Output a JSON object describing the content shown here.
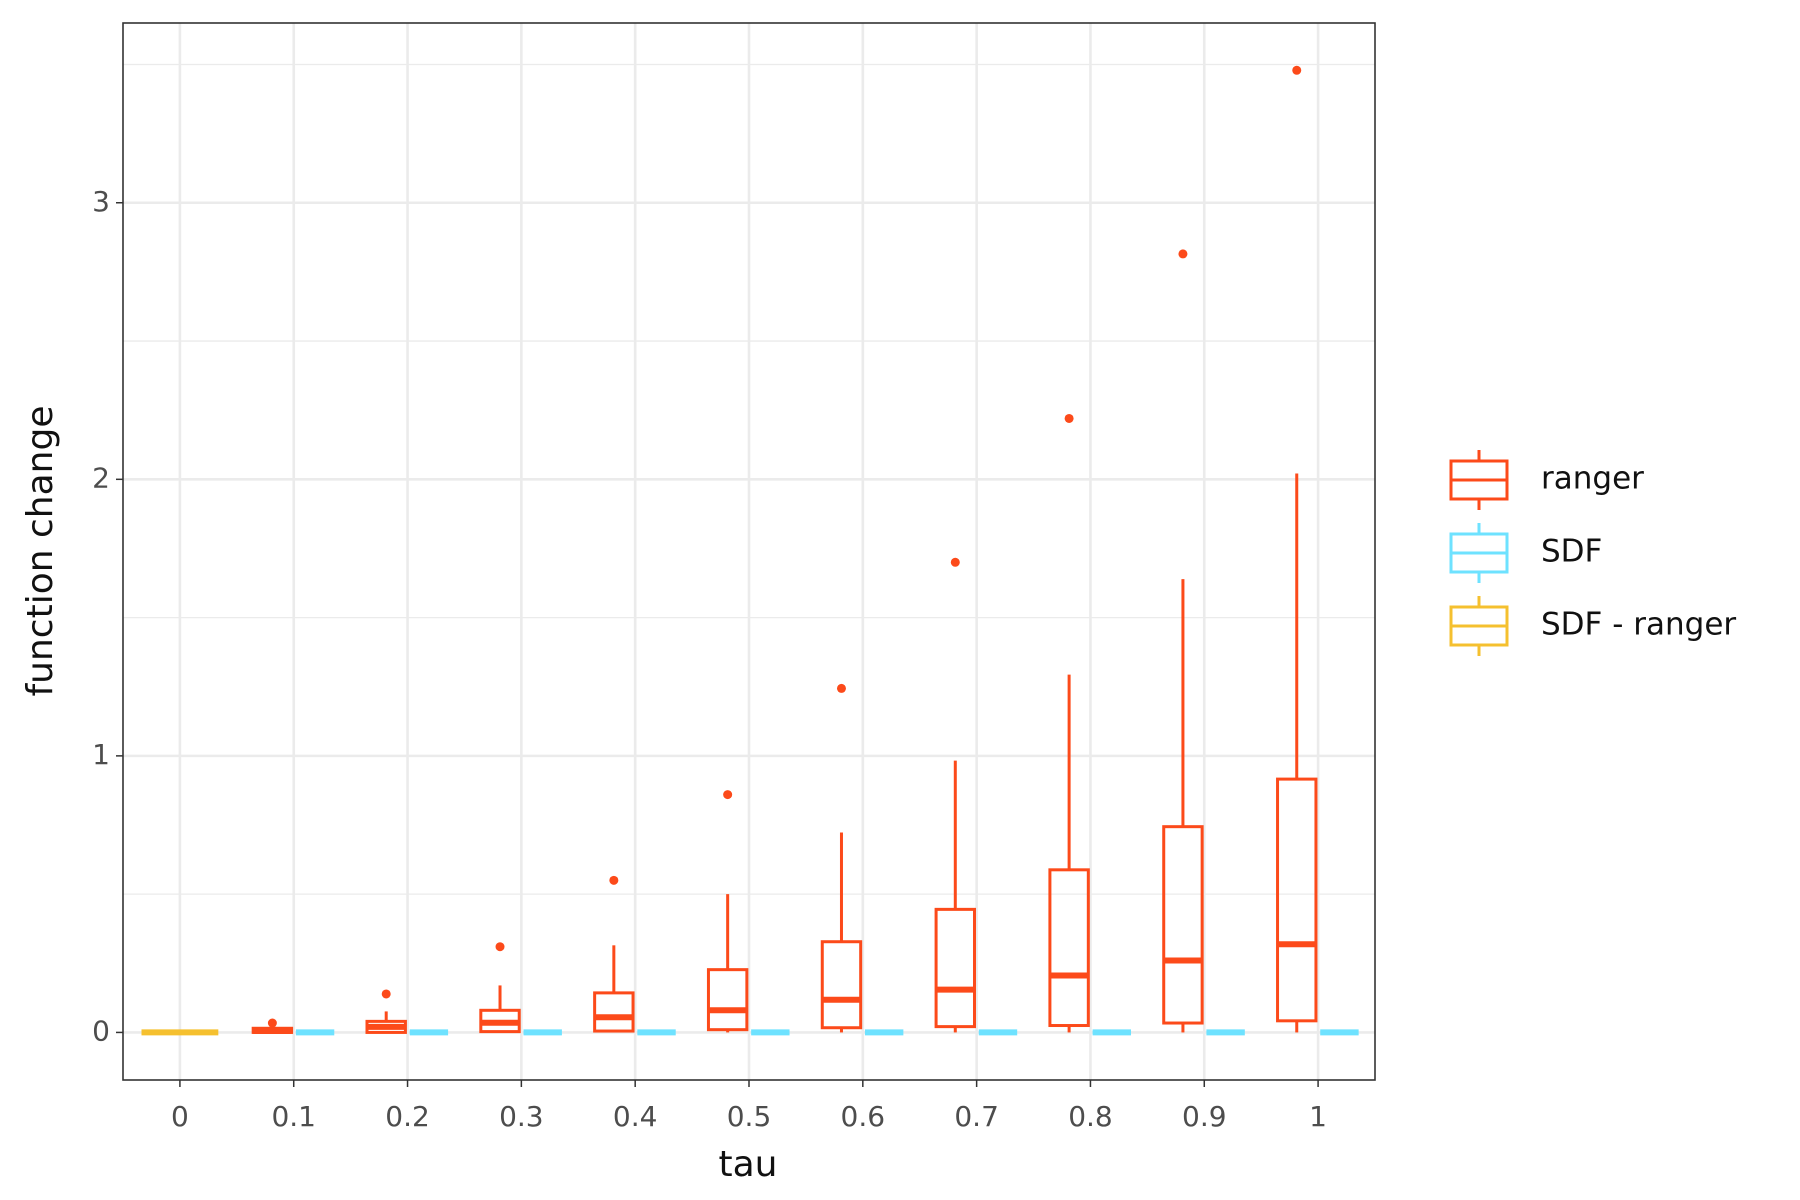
{
  "chart_data": {
    "type": "boxplot",
    "x_label": "tau",
    "y_label": "function change",
    "categories": [
      "0",
      "0.1",
      "0.2",
      "0.3",
      "0.4",
      "0.5",
      "0.6",
      "0.7",
      "0.8",
      "0.9",
      "1"
    ],
    "ylim": [
      -0.172,
      3.65
    ],
    "yticks": [
      0,
      1,
      2,
      3
    ],
    "yminor": [
      0.5,
      1.5,
      2.5,
      3.5
    ],
    "grid": true,
    "legend": "right",
    "series": [
      {
        "name": "ranger",
        "color": "#fc4a1a",
        "boxes": [
          null,
          {
            "min": 0,
            "q1": 0,
            "median": 0.005,
            "q3": 0.015,
            "max": 0.02,
            "outliers": [
              0.034
            ]
          },
          {
            "min": 0,
            "q1": 0,
            "median": 0.02,
            "q3": 0.04,
            "max": 0.076,
            "outliers": [
              0.139
            ]
          },
          {
            "min": 0,
            "q1": 0.003,
            "median": 0.035,
            "q3": 0.08,
            "max": 0.17,
            "outliers": [
              0.31
            ]
          },
          {
            "min": 0,
            "q1": 0.005,
            "median": 0.055,
            "q3": 0.143,
            "max": 0.315,
            "outliers": [
              0.55
            ]
          },
          {
            "min": 0,
            "q1": 0.01,
            "median": 0.08,
            "q3": 0.227,
            "max": 0.5,
            "outliers": [
              0.86
            ]
          },
          {
            "min": 0,
            "q1": 0.017,
            "median": 0.118,
            "q3": 0.328,
            "max": 0.723,
            "outliers": [
              1.244
            ]
          },
          {
            "min": 0,
            "q1": 0.021,
            "median": 0.155,
            "q3": 0.445,
            "max": 0.983,
            "outliers": [
              1.7
            ]
          },
          {
            "min": 0,
            "q1": 0.025,
            "median": 0.206,
            "q3": 0.588,
            "max": 1.294,
            "outliers": [
              2.22
            ]
          },
          {
            "min": 0,
            "q1": 0.034,
            "median": 0.26,
            "q3": 0.744,
            "max": 1.639,
            "outliers": [
              2.815
            ]
          },
          {
            "min": 0,
            "q1": 0.042,
            "median": 0.319,
            "q3": 0.916,
            "max": 2.021,
            "outliers": [
              3.479
            ]
          }
        ]
      },
      {
        "name": "SDF",
        "color": "#6ee2ff",
        "boxes": [
          null,
          {
            "min": 0,
            "q1": 0,
            "median": 0,
            "q3": 0,
            "max": 0,
            "outliers": []
          },
          {
            "min": 0,
            "q1": 0,
            "median": 0,
            "q3": 0,
            "max": 0,
            "outliers": []
          },
          {
            "min": 0,
            "q1": 0,
            "median": 0,
            "q3": 0,
            "max": 0,
            "outliers": []
          },
          {
            "min": 0,
            "q1": 0,
            "median": 0,
            "q3": 0,
            "max": 0,
            "outliers": []
          },
          {
            "min": 0,
            "q1": 0,
            "median": 0,
            "q3": 0,
            "max": 0,
            "outliers": []
          },
          {
            "min": 0,
            "q1": 0,
            "median": 0,
            "q3": 0,
            "max": 0,
            "outliers": []
          },
          {
            "min": 0,
            "q1": 0,
            "median": 0,
            "q3": 0,
            "max": 0,
            "outliers": []
          },
          {
            "min": 0,
            "q1": 0,
            "median": 0,
            "q3": 0,
            "max": 0,
            "outliers": []
          },
          {
            "min": 0,
            "q1": 0,
            "median": 0,
            "q3": 0,
            "max": 0,
            "outliers": []
          },
          {
            "min": 0,
            "q1": 0,
            "median": 0,
            "q3": 0,
            "max": 0,
            "outliers": []
          }
        ]
      },
      {
        "name": "SDF - ranger",
        "color": "#f5c02f",
        "boxes": [
          {
            "min": 0,
            "q1": 0,
            "median": 0,
            "q3": 0,
            "max": 0,
            "outliers": []
          },
          null,
          null,
          null,
          null,
          null,
          null,
          null,
          null,
          null,
          null
        ]
      }
    ]
  }
}
